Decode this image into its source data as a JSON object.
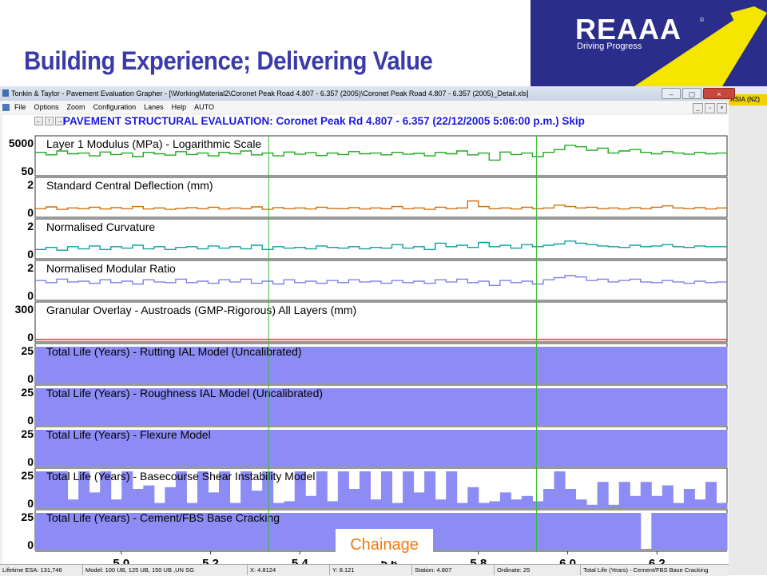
{
  "slide": {
    "title": "Building Experience; Delivering Value"
  },
  "logo": {
    "name": "REAAA",
    "tagline": "Driving Progress",
    "reg": "©"
  },
  "window": {
    "title": "Tonkin & Taylor - Pavement Evaluation Grapher - [\\WorkingMaterial2\\Coronet Peak Road 4.807 - 6.357 (2005)\\Coronet Peak Road 4.807 - 6.357 (2005)_Detail.xls]",
    "side_label": "ASIA (NZ)",
    "menu": [
      "File",
      "Options",
      "Zoom",
      "Configuration",
      "Lanes",
      "Help",
      "AUTO"
    ]
  },
  "chart": {
    "header": "PAVEMENT STRUCTURAL EVALUATION: Coronet Peak Rd 4.807 - 6.357 (22/12/2005 5:06:00 p.m.) Skip",
    "xaxis": {
      "ticks": [
        "5.0",
        "5.2",
        "5.4",
        "5.6",
        "5.8",
        "6.0",
        "6.2"
      ],
      "label": "Chainage"
    }
  },
  "chart_data": {
    "type": "line",
    "x_range": [
      4.807,
      6.357
    ],
    "x_ticks": [
      5.0,
      5.2,
      5.4,
      5.6,
      5.8,
      6.0,
      6.2
    ],
    "markers": [
      5.33,
      5.93
    ],
    "panels": [
      {
        "title": "Layer 1 Modulus (MPa) - Logarithmic Scale",
        "ymax": "5000",
        "ymin": "50",
        "color": "#22aa22",
        "kind": "line",
        "values": [
          0.62,
          0.55,
          0.66,
          0.58,
          0.6,
          0.52,
          0.63,
          0.56,
          0.6,
          0.5,
          0.62,
          0.58,
          0.54,
          0.64,
          0.56,
          0.6,
          0.52,
          0.62,
          0.58,
          0.66,
          0.55,
          0.6,
          0.52,
          0.63,
          0.57,
          0.61,
          0.53,
          0.6,
          0.56,
          0.64,
          0.58,
          0.6,
          0.55,
          0.62,
          0.57,
          0.59,
          0.52,
          0.62,
          0.58,
          0.66,
          0.55,
          0.6,
          0.4,
          0.63,
          0.56,
          0.6,
          0.5,
          0.62,
          0.7,
          0.82,
          0.78,
          0.68,
          0.74,
          0.6,
          0.66,
          0.7,
          0.62,
          0.58,
          0.64,
          0.6,
          0.57,
          0.62,
          0.58,
          0.6
        ]
      },
      {
        "title": "Standard Central Deflection (mm)",
        "ymax": "2",
        "ymin": "0",
        "color": "#d07010",
        "kind": "line",
        "values": [
          0.2,
          0.25,
          0.18,
          0.22,
          0.2,
          0.24,
          0.19,
          0.23,
          0.2,
          0.26,
          0.19,
          0.22,
          0.18,
          0.21,
          0.23,
          0.2,
          0.24,
          0.19,
          0.22,
          0.2,
          0.25,
          0.18,
          0.23,
          0.2,
          0.22,
          0.19,
          0.24,
          0.21,
          0.2,
          0.23,
          0.19,
          0.22,
          0.2,
          0.26,
          0.2,
          0.22,
          0.18,
          0.24,
          0.2,
          0.22,
          0.42,
          0.26,
          0.2,
          0.22,
          0.19,
          0.24,
          0.2,
          0.22,
          0.3,
          0.26,
          0.22,
          0.24,
          0.2,
          0.22,
          0.19,
          0.23,
          0.2,
          0.24,
          0.28,
          0.22,
          0.2,
          0.23,
          0.19,
          0.22
        ]
      },
      {
        "title": "Normalised Curvature",
        "ymax": "2",
        "ymin": "0",
        "color": "#10a0a0",
        "kind": "line",
        "values": [
          0.22,
          0.28,
          0.2,
          0.3,
          0.24,
          0.32,
          0.22,
          0.3,
          0.26,
          0.34,
          0.24,
          0.3,
          0.22,
          0.28,
          0.3,
          0.24,
          0.32,
          0.26,
          0.3,
          0.24,
          0.34,
          0.22,
          0.3,
          0.26,
          0.28,
          0.24,
          0.32,
          0.28,
          0.26,
          0.3,
          0.24,
          0.28,
          0.26,
          0.36,
          0.26,
          0.3,
          0.22,
          0.4,
          0.3,
          0.34,
          0.28,
          0.42,
          0.3,
          0.34,
          0.26,
          0.36,
          0.3,
          0.34,
          0.38,
          0.46,
          0.4,
          0.36,
          0.32,
          0.3,
          0.28,
          0.34,
          0.3,
          0.32,
          0.36,
          0.3,
          0.28,
          0.32,
          0.3,
          0.3
        ]
      },
      {
        "title": "Normalised Modular Ratio",
        "ymax": "2",
        "ymin": "0",
        "color": "#8080e8",
        "kind": "line",
        "values": [
          0.52,
          0.46,
          0.56,
          0.48,
          0.5,
          0.44,
          0.54,
          0.46,
          0.5,
          0.42,
          0.54,
          0.48,
          0.46,
          0.56,
          0.46,
          0.5,
          0.44,
          0.54,
          0.48,
          0.56,
          0.44,
          0.5,
          0.42,
          0.54,
          0.46,
          0.5,
          0.44,
          0.52,
          0.46,
          0.54,
          0.48,
          0.5,
          0.44,
          0.52,
          0.46,
          0.5,
          0.44,
          0.54,
          0.48,
          0.56,
          0.46,
          0.5,
          0.38,
          0.52,
          0.46,
          0.5,
          0.42,
          0.54,
          0.6,
          0.66,
          0.62,
          0.52,
          0.56,
          0.48,
          0.52,
          0.56,
          0.48,
          0.46,
          0.52,
          0.48,
          0.44,
          0.5,
          0.46,
          0.48
        ]
      },
      {
        "title": "Granular Overlay - Austroads (GMP-Rigorous) All Layers (mm)",
        "ymax": "300",
        "ymin": "0",
        "color": "#cc2020",
        "kind": "line",
        "values": [
          0.02,
          0.02,
          0.02,
          0.02,
          0.02,
          0.02,
          0.02,
          0.02,
          0.02,
          0.02,
          0.02,
          0.02,
          0.02,
          0.02,
          0.02,
          0.02,
          0.02,
          0.02,
          0.02,
          0.02,
          0.02,
          0.02,
          0.02,
          0.02,
          0.02,
          0.02,
          0.02,
          0.02,
          0.02,
          0.02,
          0.02,
          0.02,
          0.02,
          0.02,
          0.02,
          0.02,
          0.02,
          0.02,
          0.02,
          0.02,
          0.02,
          0.02,
          0.02,
          0.02,
          0.02,
          0.02,
          0.02,
          0.02,
          0.02,
          0.02,
          0.02,
          0.02,
          0.02,
          0.02,
          0.02,
          0.02,
          0.02,
          0.02,
          0.02,
          0.02,
          0.02,
          0.02,
          0.02,
          0.02
        ]
      },
      {
        "title": "Total Life (Years) - Rutting IAL Model (Uncalibrated)",
        "ymax": "25",
        "ymin": "0",
        "color": "#8c8cf4",
        "kind": "fill",
        "values": [
          1,
          1,
          1,
          1,
          1,
          1,
          1,
          1,
          1,
          1,
          1,
          1,
          1,
          1,
          1,
          1,
          1,
          1,
          1,
          1,
          1,
          1,
          1,
          1,
          1,
          1,
          1,
          1,
          1,
          1,
          1,
          1,
          1,
          1,
          1,
          1,
          1,
          1,
          1,
          1,
          1,
          1,
          1,
          1,
          1,
          1,
          1,
          1,
          1,
          1,
          1,
          1,
          1,
          1,
          1,
          1,
          1,
          1,
          1,
          1,
          1,
          1,
          1,
          1
        ]
      },
      {
        "title": "Total Life (Years) - Roughness IAL Model (Uncalibrated)",
        "ymax": "25",
        "ymin": "0",
        "color": "#8c8cf4",
        "kind": "fill",
        "values": [
          1,
          1,
          1,
          1,
          1,
          1,
          1,
          1,
          1,
          1,
          1,
          1,
          1,
          1,
          1,
          1,
          1,
          1,
          1,
          1,
          1,
          1,
          1,
          1,
          1,
          1,
          1,
          1,
          1,
          1,
          1,
          1,
          1,
          1,
          1,
          1,
          1,
          1,
          1,
          1,
          1,
          1,
          1,
          1,
          1,
          1,
          1,
          1,
          1,
          1,
          1,
          1,
          1,
          1,
          1,
          1,
          1,
          1,
          1,
          1,
          1,
          1,
          1,
          1
        ]
      },
      {
        "title": "Total Life (Years) - Flexure Model",
        "ymax": "25",
        "ymin": "0",
        "color": "#8c8cf4",
        "kind": "fill",
        "values": [
          1,
          1,
          1,
          1,
          1,
          1,
          1,
          1,
          1,
          1,
          1,
          1,
          1,
          1,
          1,
          1,
          1,
          1,
          1,
          1,
          1,
          1,
          1,
          1,
          1,
          1,
          1,
          1,
          1,
          1,
          1,
          1,
          1,
          1,
          1,
          1,
          1,
          1,
          1,
          1,
          1,
          1,
          1,
          1,
          1,
          1,
          1,
          1,
          1,
          1,
          1,
          1,
          1,
          1,
          1,
          1,
          1,
          1,
          1,
          1,
          1,
          1,
          1,
          1
        ]
      },
      {
        "title": "Total Life (Years) - Basecourse Shear Instability Model",
        "ymax": "25",
        "ymin": "0",
        "color": "#8c8cf4",
        "kind": "fill",
        "values": [
          1,
          1,
          1,
          0.2,
          1,
          0.4,
          1,
          0.2,
          1,
          0.5,
          0.6,
          0.1,
          0.55,
          1,
          0.1,
          1,
          0.4,
          1,
          0.1,
          1,
          0.45,
          1,
          0.1,
          0.15,
          1,
          0.3,
          1,
          0.15,
          1,
          0.5,
          1,
          0.2,
          1,
          0.1,
          1,
          0.4,
          1,
          0.2,
          1,
          0.1,
          0.55,
          0.1,
          0.15,
          0.4,
          0.2,
          0.3,
          0.15,
          0.5,
          1,
          0.5,
          0.2,
          0.05,
          0.7,
          0.05,
          0.7,
          0.3,
          0.7,
          0.3,
          0.6,
          0.1,
          0.5,
          0.2,
          0.7,
          0.1
        ]
      },
      {
        "title": "Total Life (Years) - Cement/FBS Base Cracking",
        "ymax": "25",
        "ymin": "0",
        "color": "#8c8cf4",
        "kind": "fill",
        "values": [
          1,
          1,
          1,
          1,
          1,
          1,
          1,
          1,
          1,
          1,
          1,
          1,
          1,
          1,
          1,
          1,
          1,
          1,
          1,
          1,
          1,
          1,
          1,
          1,
          1,
          1,
          1,
          1,
          1,
          1,
          1,
          1,
          1,
          1,
          1,
          1,
          1,
          1,
          1,
          1,
          1,
          1,
          1,
          1,
          1,
          1,
          1,
          1,
          1,
          1,
          1,
          1,
          1,
          1,
          1,
          1,
          0,
          1,
          1,
          1,
          1,
          1,
          1,
          1
        ]
      }
    ]
  },
  "status": {
    "lifetime": "Lifetime ESA: 131,746",
    "model": "Model: 100 UB, 125 UB, 150 UB ,UN SG",
    "x": "X: 4.8124",
    "y": "Y: 8.121",
    "station": "Station: 4.807",
    "ordinate": "Ordinate: 25",
    "current": "Total Life (Years) - Cement/FBS Base Cracking"
  }
}
